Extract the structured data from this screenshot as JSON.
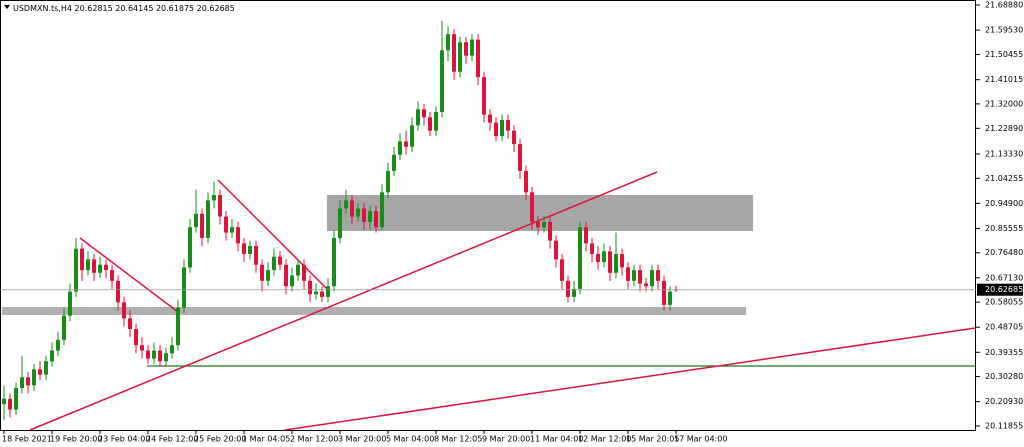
{
  "chart_data": {
    "type": "candlestick",
    "title": "USDMXN.ts,H4",
    "up_color": "#1a8c1a",
    "down_color": "#dc143c",
    "ylim": [
      20.1036,
      21.7038
    ],
    "yticks": [
      {
        "value": 21.6888,
        "label": "21.68880"
      },
      {
        "value": 21.5953,
        "label": "21.59530"
      },
      21.50455,
      21.41015,
      {
        "value": 21.32,
        "label": "21.32000"
      },
      {
        "value": 21.2289,
        "label": "21.22890"
      },
      {
        "value": 21.1333,
        "label": "21.13330"
      },
      21.04255,
      {
        "value": 20.949,
        "label": "20.94900"
      },
      20.85555,
      {
        "value": 20.7648,
        "label": "20.76480"
      },
      {
        "value": 20.6713,
        "label": "20.67130"
      },
      20.58055,
      20.48705,
      20.39355,
      {
        "value": 20.3028,
        "label": "20.30280"
      },
      {
        "value": 20.2093,
        "label": "20.20930"
      },
      20.11855
    ],
    "categories": [
      "18 Feb 2021",
      null,
      null,
      null,
      null,
      null,
      null,
      null,
      "19 Feb 20:00",
      null,
      null,
      null,
      null,
      null,
      null,
      null,
      "23 Feb 04:00",
      null,
      null,
      null,
      null,
      null,
      null,
      null,
      "24 Feb 12:00",
      null,
      null,
      null,
      null,
      null,
      null,
      null,
      "25 Feb 20:00",
      null,
      null,
      null,
      null,
      null,
      null,
      null,
      "1 Mar 04:05",
      null,
      null,
      null,
      null,
      null,
      null,
      null,
      "2 Mar 12:00",
      null,
      null,
      null,
      null,
      null,
      null,
      null,
      "3 Mar 20:00",
      null,
      null,
      null,
      null,
      null,
      null,
      null,
      "5 Mar 04:00",
      null,
      null,
      null,
      null,
      null,
      null,
      null,
      "8 Mar 12:05",
      null,
      null,
      null,
      null,
      null,
      null,
      null,
      "9 Mar 20:00",
      null,
      null,
      null,
      null,
      null,
      null,
      null,
      "11 Mar 04:00",
      null,
      null,
      null,
      null,
      null,
      null,
      null,
      "12 Mar 12:00",
      null,
      null,
      null,
      null,
      null,
      null,
      null,
      "15 Mar 20:05",
      null,
      null,
      null,
      null,
      null,
      null,
      null,
      "17 Mar 04:00"
    ],
    "open": [
      20.2,
      20.22,
      20.18,
      20.26,
      20.3,
      20.27,
      20.33,
      20.31,
      20.36,
      20.4,
      20.44,
      20.53,
      20.62,
      20.78,
      20.7,
      20.74,
      20.69,
      20.72,
      20.7,
      20.66,
      20.58,
      20.52,
      20.48,
      20.42,
      20.4,
      20.37,
      20.4,
      20.36,
      20.39,
      20.42,
      20.56,
      20.71,
      20.86,
      20.91,
      20.82,
      20.96,
      20.98,
      20.9,
      20.84,
      20.86,
      20.8,
      20.76,
      20.79,
      20.72,
      20.66,
      20.7,
      20.75,
      20.72,
      20.64,
      20.68,
      20.72,
      20.66,
      20.61,
      20.62,
      20.6,
      20.64,
      20.82,
      20.93,
      20.96,
      20.9,
      20.93,
      20.88,
      20.92,
      20.86,
      20.99,
      21.07,
      21.13,
      21.18,
      21.16,
      21.24,
      21.3,
      21.27,
      21.22,
      21.29,
      21.52,
      21.58,
      21.44,
      21.55,
      21.5,
      21.56,
      21.42,
      21.28,
      21.25,
      21.2,
      21.26,
      21.22,
      21.17,
      21.07,
      20.99,
      20.88,
      20.86,
      20.88,
      20.81,
      20.74,
      20.66,
      20.6,
      20.63,
      20.86,
      20.8,
      20.76,
      20.73,
      20.77,
      20.69,
      20.76,
      20.71,
      20.66,
      20.7,
      20.65,
      20.64,
      20.7,
      20.66,
      20.57,
      20.62815
    ],
    "high": [
      20.27,
      20.24,
      20.28,
      20.38,
      20.32,
      20.35,
      20.36,
      20.38,
      20.43,
      20.47,
      20.56,
      20.65,
      20.82,
      20.8,
      20.77,
      20.76,
      20.75,
      20.74,
      20.72,
      20.68,
      20.6,
      20.55,
      20.5,
      20.45,
      20.42,
      20.43,
      20.42,
      20.41,
      20.45,
      20.59,
      20.74,
      20.89,
      21.0,
      20.93,
      20.99,
      21.03,
      21.0,
      20.92,
      20.89,
      20.88,
      20.82,
      20.81,
      20.81,
      20.74,
      20.73,
      20.78,
      20.77,
      20.74,
      20.71,
      20.74,
      20.74,
      20.68,
      20.65,
      20.64,
      20.67,
      20.85,
      20.96,
      21.0,
      20.98,
      20.95,
      20.95,
      20.94,
      20.94,
      21.02,
      21.1,
      21.16,
      21.21,
      21.22,
      21.27,
      21.33,
      21.32,
      21.29,
      21.31,
      21.63,
      21.61,
      21.6,
      21.57,
      21.57,
      21.58,
      21.58,
      21.44,
      21.3,
      21.27,
      21.28,
      21.28,
      21.24,
      21.19,
      21.09,
      21.01,
      20.9,
      20.9,
      20.9,
      20.83,
      20.76,
      20.68,
      20.66,
      20.88,
      20.88,
      20.82,
      20.79,
      20.8,
      20.79,
      20.84,
      20.78,
      20.73,
      20.72,
      20.72,
      20.67,
      20.72,
      20.72,
      20.68,
      20.64,
      20.64145
    ],
    "low": [
      20.14,
      20.15,
      20.16,
      20.24,
      20.24,
      20.25,
      20.29,
      20.29,
      20.34,
      20.38,
      20.42,
      20.51,
      20.6,
      20.66,
      20.68,
      20.66,
      20.67,
      20.67,
      20.63,
      20.55,
      20.49,
      20.45,
      20.39,
      20.37,
      20.35,
      20.35,
      20.34,
      20.34,
      20.37,
      20.4,
      20.54,
      20.69,
      20.84,
      20.79,
      20.8,
      20.93,
      20.87,
      20.81,
      20.82,
      20.77,
      20.73,
      20.74,
      20.69,
      20.62,
      20.64,
      20.68,
      20.7,
      20.61,
      20.62,
      20.66,
      20.63,
      20.58,
      20.59,
      20.58,
      20.58,
      20.62,
      20.8,
      20.91,
      20.87,
      20.88,
      20.85,
      20.85,
      20.84,
      20.85,
      20.97,
      21.05,
      21.11,
      21.13,
      21.14,
      21.22,
      21.24,
      21.2,
      21.2,
      21.27,
      21.48,
      21.41,
      21.42,
      21.47,
      21.48,
      21.39,
      21.25,
      21.22,
      21.18,
      21.18,
      21.19,
      21.14,
      21.04,
      20.96,
      20.85,
      20.83,
      20.84,
      20.78,
      20.71,
      20.63,
      20.58,
      20.58,
      20.61,
      20.77,
      20.73,
      20.7,
      20.71,
      20.66,
      20.67,
      20.68,
      20.63,
      20.64,
      20.62,
      20.62,
      20.62,
      20.63,
      20.55,
      20.55,
      20.61875
    ],
    "close": [
      20.22,
      20.18,
      20.26,
      20.3,
      20.27,
      20.33,
      20.31,
      20.36,
      20.4,
      20.44,
      20.53,
      20.62,
      20.78,
      20.7,
      20.74,
      20.69,
      20.72,
      20.7,
      20.66,
      20.58,
      20.52,
      20.48,
      20.42,
      20.4,
      20.37,
      20.4,
      20.36,
      20.39,
      20.42,
      20.56,
      20.71,
      20.86,
      20.91,
      20.82,
      20.96,
      20.98,
      20.9,
      20.84,
      20.86,
      20.8,
      20.76,
      20.79,
      20.72,
      20.66,
      20.7,
      20.75,
      20.72,
      20.64,
      20.68,
      20.72,
      20.66,
      20.61,
      20.62,
      20.6,
      20.64,
      20.82,
      20.93,
      20.96,
      20.9,
      20.93,
      20.88,
      20.92,
      20.86,
      20.99,
      21.07,
      21.13,
      21.18,
      21.16,
      21.24,
      21.3,
      21.27,
      21.22,
      21.29,
      21.52,
      21.58,
      21.44,
      21.55,
      21.5,
      21.56,
      21.42,
      21.28,
      21.25,
      21.2,
      21.26,
      21.22,
      21.17,
      21.07,
      20.99,
      20.88,
      20.86,
      20.88,
      20.81,
      20.74,
      20.66,
      20.6,
      20.63,
      20.86,
      20.8,
      20.76,
      20.73,
      20.77,
      20.69,
      20.76,
      20.71,
      20.66,
      20.7,
      20.65,
      20.64,
      20.7,
      20.66,
      20.57,
      20.62,
      20.62685
    ]
  }
}
